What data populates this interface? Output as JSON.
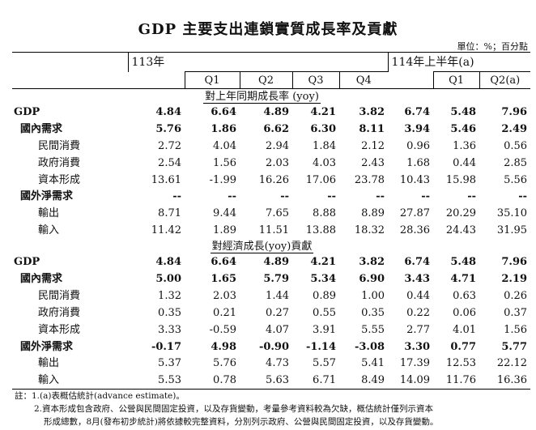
{
  "title": "GDP 主要支出連鎖實質成長率及貢獻",
  "unit": "單位：%；百分點",
  "header": {
    "year1": "113年",
    "year2": "114年上半年(a)",
    "quarters": [
      "Q1",
      "Q2",
      "Q3",
      "Q4",
      "Q1",
      "Q2(a)"
    ]
  },
  "sections": [
    {
      "title": "對上年同期成長率 (yoy)",
      "rows": [
        {
          "label": "GDP",
          "level": 0,
          "bold": true,
          "values": [
            "4.84",
            "6.64",
            "4.89",
            "4.21",
            "3.82",
            "6.74",
            "5.48",
            "7.96"
          ]
        },
        {
          "label": "國內需求",
          "level": 1,
          "bold": true,
          "values": [
            "5.76",
            "1.86",
            "6.62",
            "6.30",
            "8.11",
            "3.94",
            "5.46",
            "2.49"
          ]
        },
        {
          "label": "民間消費",
          "level": 2,
          "bold": false,
          "values": [
            "2.72",
            "4.04",
            "2.94",
            "1.84",
            "2.12",
            "0.96",
            "1.36",
            "0.56"
          ]
        },
        {
          "label": "政府消費",
          "level": 2,
          "bold": false,
          "values": [
            "2.54",
            "1.56",
            "2.03",
            "4.03",
            "2.43",
            "1.68",
            "0.44",
            "2.85"
          ]
        },
        {
          "label": "資本形成",
          "level": 2,
          "bold": false,
          "values": [
            "13.61",
            "-1.99",
            "16.26",
            "17.06",
            "23.78",
            "10.43",
            "15.98",
            "5.56"
          ]
        },
        {
          "label": "國外淨需求",
          "level": 1,
          "bold": true,
          "values": [
            "--",
            "--",
            "--",
            "--",
            "--",
            "--",
            "--",
            "--"
          ]
        },
        {
          "label": "輸出",
          "level": 2,
          "bold": false,
          "values": [
            "8.71",
            "9.44",
            "7.65",
            "8.88",
            "8.89",
            "27.87",
            "20.29",
            "35.10"
          ]
        },
        {
          "label": "輸入",
          "level": 2,
          "bold": false,
          "values": [
            "11.42",
            "1.89",
            "11.51",
            "13.88",
            "18.32",
            "28.36",
            "24.43",
            "31.95"
          ]
        }
      ]
    },
    {
      "title": "對經濟成長(yoy)貢獻",
      "rows": [
        {
          "label": "GDP",
          "level": 0,
          "bold": true,
          "values": [
            "4.84",
            "6.64",
            "4.89",
            "4.21",
            "3.82",
            "6.74",
            "5.48",
            "7.96"
          ]
        },
        {
          "label": "國內需求",
          "level": 1,
          "bold": true,
          "values": [
            "5.00",
            "1.65",
            "5.79",
            "5.34",
            "6.90",
            "3.43",
            "4.71",
            "2.19"
          ]
        },
        {
          "label": "民間消費",
          "level": 2,
          "bold": false,
          "values": [
            "1.32",
            "2.03",
            "1.44",
            "0.89",
            "1.00",
            "0.44",
            "0.63",
            "0.26"
          ]
        },
        {
          "label": "政府消費",
          "level": 2,
          "bold": false,
          "values": [
            "0.35",
            "0.21",
            "0.27",
            "0.55",
            "0.35",
            "0.22",
            "0.06",
            "0.37"
          ]
        },
        {
          "label": "資本形成",
          "level": 2,
          "bold": false,
          "values": [
            "3.33",
            "-0.59",
            "4.07",
            "3.91",
            "5.55",
            "2.77",
            "4.01",
            "1.56"
          ]
        },
        {
          "label": "國外淨需求",
          "level": 1,
          "bold": true,
          "values": [
            "-0.17",
            "4.98",
            "-0.90",
            "-1.14",
            "-3.08",
            "3.30",
            "0.77",
            "5.77"
          ]
        },
        {
          "label": "輸出",
          "level": 2,
          "bold": false,
          "values": [
            "5.37",
            "5.76",
            "4.73",
            "5.57",
            "5.41",
            "17.39",
            "12.53",
            "22.12"
          ]
        },
        {
          "label": "輸入",
          "level": 2,
          "bold": false,
          "values": [
            "5.53",
            "0.78",
            "5.63",
            "6.71",
            "8.49",
            "14.09",
            "11.76",
            "16.36"
          ]
        }
      ]
    }
  ],
  "notes": {
    "line1": "註：1.(a)表概估統計(advance estimate)。",
    "line2": "2.資本形成包含政府、公營與民間固定投資，以及存貨變動，考量參考資料較為欠缺，概估統計僅列示資本",
    "line3": "形成總數，8月(發布初步統計)將依據較完整資料，分別列示政府、公營與民間固定投資，以及存貨變動。"
  }
}
